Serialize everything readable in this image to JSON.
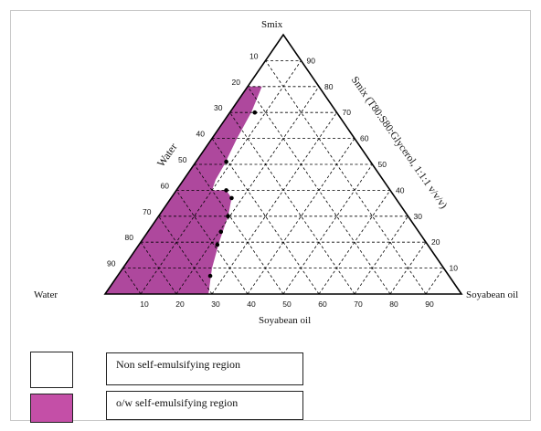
{
  "chart_data": {
    "type": "ternary",
    "vertex_labels": {
      "top": "Smix",
      "left": "Water",
      "right": "Soyabean oil"
    },
    "axis_labels": {
      "left": "Water",
      "right": "Smix (T80:S80:Glycerol, 1:1:1 v/v/v)",
      "bottom": "Soyabean oil"
    },
    "ticks": [
      10,
      20,
      30,
      40,
      50,
      60,
      70,
      80,
      90
    ],
    "grid": "dashed",
    "regions": [
      {
        "name": "o/w self-emulsifying region",
        "color": "#A0288C",
        "boundary_oil_pct": [
          [
            80,
            4
          ],
          [
            70,
            6
          ],
          [
            60,
            7
          ],
          [
            50,
            8.5
          ],
          [
            44,
            9
          ],
          [
            40,
            10
          ],
          [
            40,
            14
          ],
          [
            37,
            17
          ],
          [
            30,
            19.5
          ],
          [
            20,
            22
          ],
          [
            10,
            25
          ],
          [
            0,
            29
          ]
        ]
      }
    ],
    "boundary_points_oil_smix": [
      [
        7,
        70
      ],
      [
        8.5,
        51
      ],
      [
        14,
        40
      ],
      [
        17,
        37
      ],
      [
        19.5,
        30
      ],
      [
        20.5,
        24
      ],
      [
        22,
        19
      ],
      [
        26,
        7
      ]
    ]
  },
  "legend": {
    "items": [
      {
        "label": "Non self-emulsifying region",
        "color": "#FFFFFF"
      },
      {
        "label": "o/w self-emulsifying  region",
        "color": "#C44FA7"
      }
    ]
  }
}
